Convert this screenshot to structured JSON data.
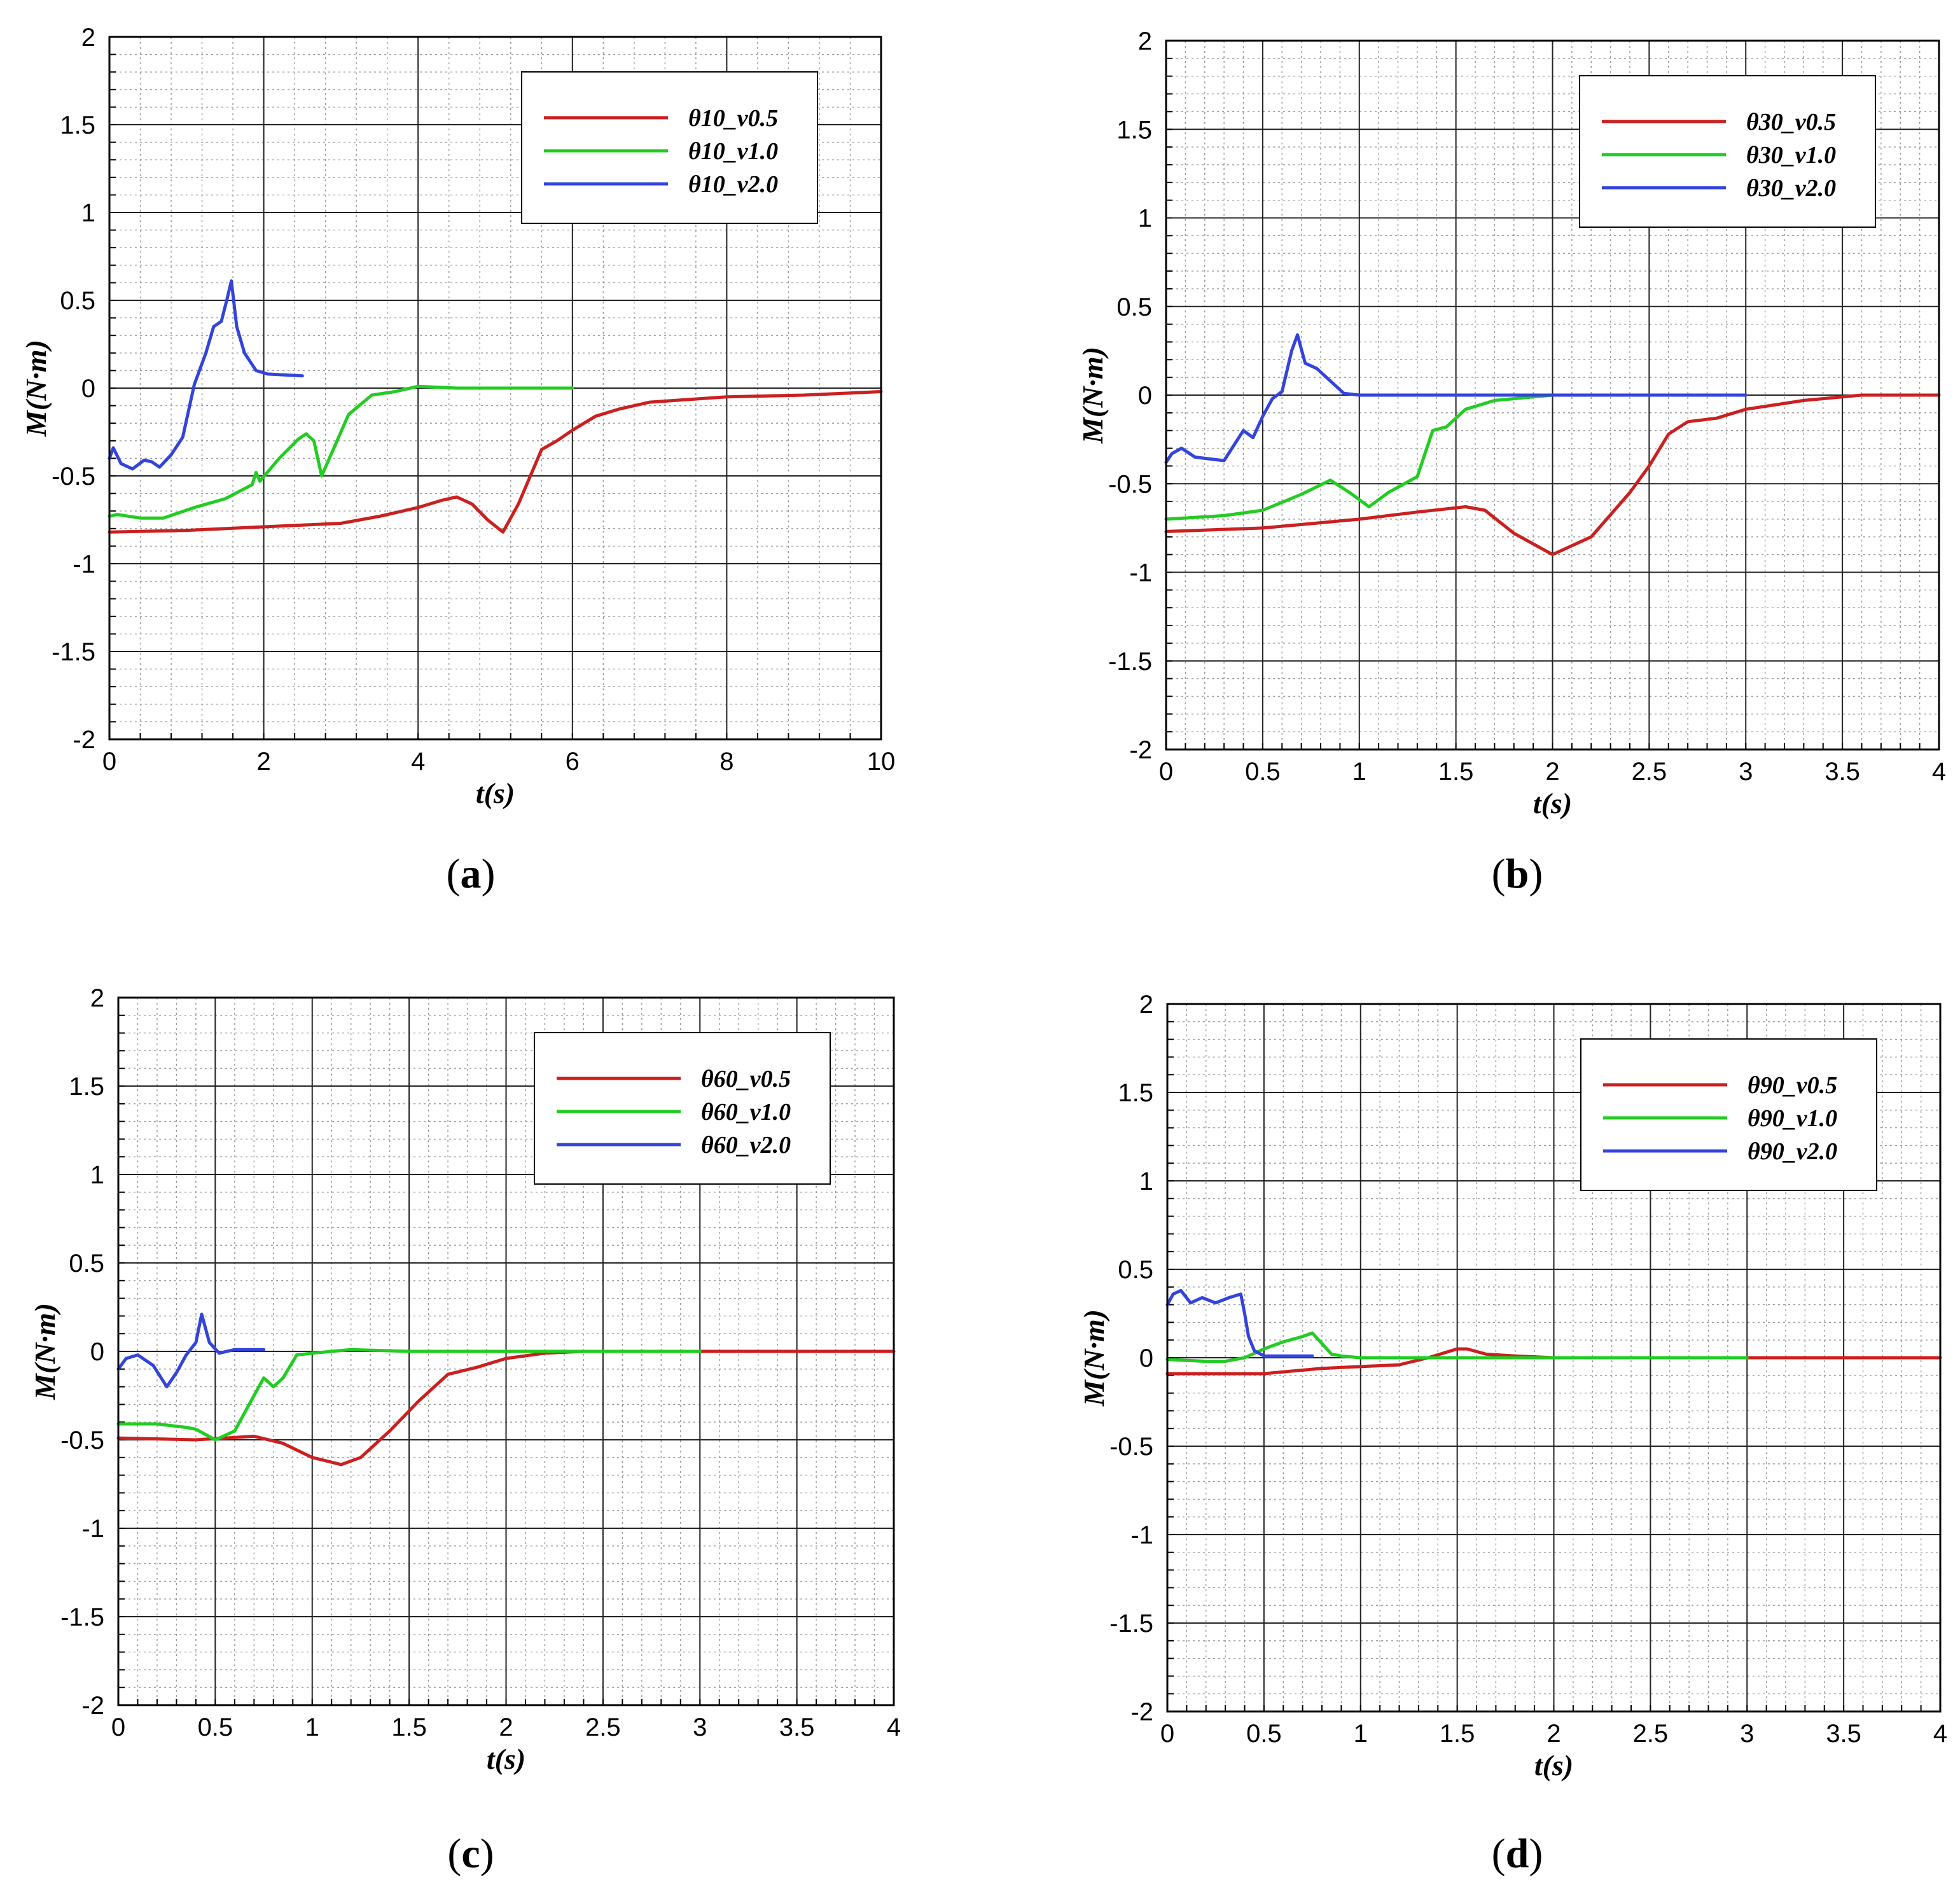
{
  "figure": {
    "panels": [
      "a",
      "b",
      "c",
      "d"
    ]
  },
  "chart_data": [
    {
      "id": "a",
      "type": "line",
      "caption": "(a)",
      "caption_letter": "a",
      "xlabel": "t(s)",
      "ylabel": "M(N·m)",
      "xlim": [
        0,
        10
      ],
      "ylim": [
        -2,
        2
      ],
      "xticks": [
        0,
        2,
        4,
        6,
        8,
        10
      ],
      "yticks": [
        -2,
        -1.5,
        -1,
        -0.5,
        0,
        0.5,
        1,
        1.5,
        2
      ],
      "xminor": 0.4,
      "yminor": 0.1,
      "xmajor_grid": 2,
      "ymajor_grid": 0.5,
      "legend_position": "top-right",
      "series": [
        {
          "name": "θ10_v0.5",
          "color": "#cc1f1f",
          "x": [
            0,
            1,
            2,
            3,
            3.5,
            4,
            4.3,
            4.5,
            4.7,
            4.9,
            5.1,
            5.3,
            5.6,
            5.8,
            6,
            6.3,
            6.6,
            7,
            8,
            9,
            10
          ],
          "y": [
            -0.82,
            -0.81,
            -0.79,
            -0.77,
            -0.73,
            -0.68,
            -0.64,
            -0.62,
            -0.66,
            -0.75,
            -0.82,
            -0.66,
            -0.35,
            -0.3,
            -0.24,
            -0.16,
            -0.12,
            -0.08,
            -0.05,
            -0.04,
            -0.02
          ]
        },
        {
          "name": "θ10_v1.0",
          "color": "#22cc22",
          "x": [
            0,
            0.1,
            0.4,
            0.7,
            1.1,
            1.5,
            1.85,
            1.9,
            1.95,
            2.2,
            2.45,
            2.55,
            2.65,
            2.75,
            2.9,
            3.1,
            3.4,
            3.7,
            4,
            4.5,
            5,
            6
          ],
          "y": [
            -0.73,
            -0.72,
            -0.74,
            -0.74,
            -0.68,
            -0.63,
            -0.55,
            -0.48,
            -0.53,
            -0.4,
            -0.29,
            -0.26,
            -0.3,
            -0.5,
            -0.35,
            -0.15,
            -0.04,
            -0.02,
            0.01,
            0,
            0,
            0
          ]
        },
        {
          "name": "θ10_v2.0",
          "color": "#3344dd",
          "x": [
            0,
            0.05,
            0.15,
            0.3,
            0.45,
            0.55,
            0.65,
            0.8,
            0.95,
            1.1,
            1.25,
            1.35,
            1.45,
            1.52,
            1.58,
            1.65,
            1.75,
            1.9,
            2.05,
            2.5
          ],
          "y": [
            -0.4,
            -0.34,
            -0.43,
            -0.46,
            -0.41,
            -0.42,
            -0.45,
            -0.38,
            -0.28,
            0.02,
            0.2,
            0.35,
            0.38,
            0.5,
            0.61,
            0.35,
            0.2,
            0.1,
            0.08,
            0.07
          ]
        }
      ]
    },
    {
      "id": "b",
      "type": "line",
      "caption": "(b)",
      "caption_letter": "b",
      "xlabel": "t(s)",
      "ylabel": "M(N·m)",
      "xlim": [
        0,
        4
      ],
      "ylim": [
        -2,
        2
      ],
      "xticks": [
        0,
        0.5,
        1,
        1.5,
        2,
        2.5,
        3,
        3.5,
        4
      ],
      "yticks": [
        -2,
        -1.5,
        -1,
        -0.5,
        0,
        0.5,
        1,
        1.5,
        2
      ],
      "xminor": 0.1,
      "yminor": 0.1,
      "xmajor_grid": 0.5,
      "ymajor_grid": 0.5,
      "legend_position": "top-right",
      "series": [
        {
          "name": "θ30_v0.5",
          "color": "#cc1f1f",
          "x": [
            0,
            0.5,
            1,
            1.3,
            1.55,
            1.65,
            1.8,
            2,
            2.2,
            2.4,
            2.5,
            2.6,
            2.7,
            2.85,
            3,
            3.3,
            3.6,
            4
          ],
          "y": [
            -0.77,
            -0.75,
            -0.7,
            -0.66,
            -0.63,
            -0.65,
            -0.78,
            -0.9,
            -0.8,
            -0.55,
            -0.4,
            -0.22,
            -0.15,
            -0.13,
            -0.08,
            -0.03,
            0,
            0
          ]
        },
        {
          "name": "θ30_v1.0",
          "color": "#22cc22",
          "x": [
            0,
            0.3,
            0.5,
            0.7,
            0.85,
            0.95,
            1.05,
            1.15,
            1.25,
            1.3,
            1.38,
            1.45,
            1.55,
            1.7,
            2,
            2.5,
            3
          ],
          "y": [
            -0.7,
            -0.68,
            -0.65,
            -0.56,
            -0.48,
            -0.55,
            -0.63,
            -0.55,
            -0.49,
            -0.46,
            -0.2,
            -0.18,
            -0.08,
            -0.03,
            0,
            0,
            0
          ]
        },
        {
          "name": "θ30_v2.0",
          "color": "#3344dd",
          "x": [
            0,
            0.03,
            0.08,
            0.15,
            0.3,
            0.4,
            0.45,
            0.5,
            0.55,
            0.6,
            0.65,
            0.68,
            0.72,
            0.78,
            0.85,
            0.92,
            1,
            1.5,
            2,
            3
          ],
          "y": [
            -0.38,
            -0.33,
            -0.3,
            -0.35,
            -0.37,
            -0.2,
            -0.24,
            -0.12,
            -0.02,
            0.02,
            0.25,
            0.34,
            0.18,
            0.15,
            0.08,
            0.01,
            0,
            0,
            0,
            0
          ]
        }
      ]
    },
    {
      "id": "c",
      "type": "line",
      "caption": "(c)",
      "caption_letter": "c",
      "xlabel": "t(s)",
      "ylabel": "M(N·m)",
      "xlim": [
        0,
        4
      ],
      "ylim": [
        -2,
        2
      ],
      "xticks": [
        0,
        0.5,
        1,
        1.5,
        2,
        2.5,
        3,
        3.5,
        4
      ],
      "yticks": [
        -2,
        -1.5,
        -1,
        -0.5,
        0,
        0.5,
        1,
        1.5,
        2
      ],
      "xminor": 0.1,
      "yminor": 0.1,
      "xmajor_grid": 0.5,
      "ymajor_grid": 0.5,
      "legend_position": "top-right",
      "series": [
        {
          "name": "θ60_v0.5",
          "color": "#cc1f1f",
          "x": [
            0,
            0.4,
            0.7,
            0.85,
            1,
            1.15,
            1.25,
            1.4,
            1.55,
            1.7,
            1.85,
            2,
            2.2,
            2.4,
            3,
            4
          ],
          "y": [
            -0.49,
            -0.5,
            -0.48,
            -0.52,
            -0.6,
            -0.64,
            -0.6,
            -0.45,
            -0.28,
            -0.13,
            -0.09,
            -0.04,
            -0.01,
            0,
            0,
            0
          ]
        },
        {
          "name": "θ60_v1.0",
          "color": "#22cc22",
          "x": [
            0,
            0.2,
            0.35,
            0.4,
            0.5,
            0.6,
            0.7,
            0.75,
            0.8,
            0.85,
            0.92,
            1,
            1.2,
            1.5,
            2,
            3
          ],
          "y": [
            -0.41,
            -0.41,
            -0.43,
            -0.44,
            -0.5,
            -0.45,
            -0.25,
            -0.15,
            -0.2,
            -0.15,
            -0.02,
            -0.01,
            0.01,
            0,
            0,
            0
          ]
        },
        {
          "name": "θ60_v2.0",
          "color": "#3344dd",
          "x": [
            0,
            0.04,
            0.1,
            0.18,
            0.25,
            0.3,
            0.35,
            0.4,
            0.43,
            0.47,
            0.52,
            0.6,
            0.75
          ],
          "y": [
            -0.1,
            -0.04,
            -0.02,
            -0.08,
            -0.2,
            -0.12,
            -0.02,
            0.05,
            0.21,
            0.05,
            -0.01,
            0.01,
            0.01
          ]
        }
      ]
    },
    {
      "id": "d",
      "type": "line",
      "caption": "(d)",
      "caption_letter": "d",
      "xlabel": "t(s)",
      "ylabel": "M(N·m)",
      "xlim": [
        0,
        4
      ],
      "ylim": [
        -2,
        2
      ],
      "xticks": [
        0,
        0.5,
        1,
        1.5,
        2,
        2.5,
        3,
        3.5,
        4
      ],
      "yticks": [
        -2,
        -1.5,
        -1,
        -0.5,
        0,
        0.5,
        1,
        1.5,
        2
      ],
      "xminor": 0.1,
      "yminor": 0.1,
      "xmajor_grid": 0.5,
      "ymajor_grid": 0.5,
      "legend_position": "top-right",
      "series": [
        {
          "name": "θ90_v0.5",
          "color": "#cc1f1f",
          "x": [
            0,
            0.5,
            0.8,
            1,
            1.2,
            1.35,
            1.5,
            1.55,
            1.65,
            1.8,
            2,
            3,
            4
          ],
          "y": [
            -0.09,
            -0.09,
            -0.06,
            -0.05,
            -0.04,
            0,
            0.05,
            0.05,
            0.02,
            0.01,
            0,
            0,
            0
          ]
        },
        {
          "name": "θ90_v1.0",
          "color": "#22cc22",
          "x": [
            0,
            0.2,
            0.3,
            0.4,
            0.5,
            0.6,
            0.7,
            0.75,
            0.8,
            0.85,
            0.9,
            1,
            1.5,
            2,
            3
          ],
          "y": [
            -0.01,
            -0.02,
            -0.02,
            0,
            0.05,
            0.09,
            0.12,
            0.14,
            0.08,
            0.02,
            0.01,
            0,
            0,
            0,
            0
          ]
        },
        {
          "name": "θ90_v2.0",
          "color": "#3344dd",
          "x": [
            0,
            0.03,
            0.07,
            0.12,
            0.18,
            0.25,
            0.32,
            0.38,
            0.4,
            0.42,
            0.45,
            0.5,
            0.6,
            0.75
          ],
          "y": [
            0.3,
            0.36,
            0.38,
            0.31,
            0.34,
            0.31,
            0.34,
            0.36,
            0.25,
            0.12,
            0.04,
            0.01,
            0.01,
            0.01
          ]
        }
      ]
    }
  ]
}
